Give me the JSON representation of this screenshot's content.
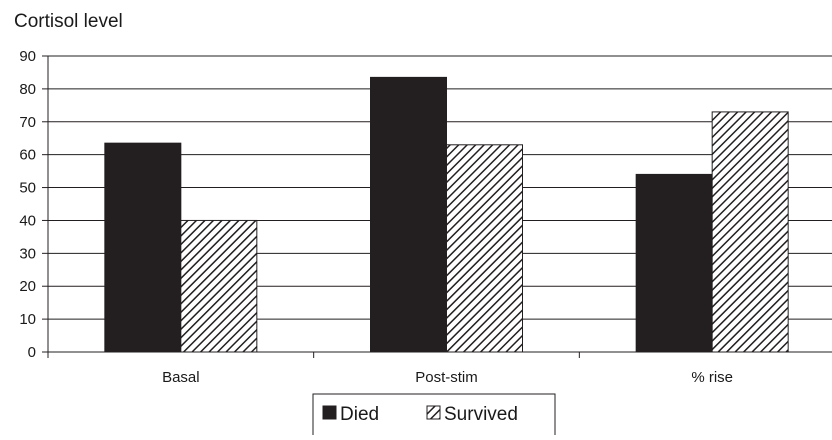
{
  "chart_data": {
    "type": "bar",
    "title": "Cortisol level",
    "categories": [
      "Basal",
      "Post-stim",
      "% rise"
    ],
    "series": [
      {
        "name": "Died",
        "values": [
          63.5,
          83.5,
          54
        ],
        "color": "#231f20",
        "pattern": "solid"
      },
      {
        "name": "Survived",
        "values": [
          40,
          63,
          73
        ],
        "color": "#231f20",
        "pattern": "diagonal-hatch"
      }
    ],
    "xlabel": "",
    "ylabel": "",
    "ylim": [
      0,
      90
    ],
    "yticks": [
      "0",
      "10",
      "20",
      "30",
      "40",
      "50",
      "60",
      "70",
      "80",
      "90"
    ],
    "grid": true,
    "legend_position": "bottom"
  }
}
